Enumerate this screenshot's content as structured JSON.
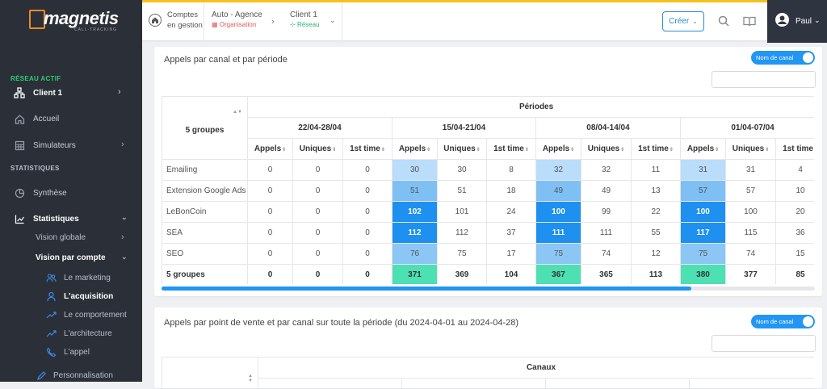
{
  "sidebar": {
    "logo_word": "magnetis",
    "logo_sub": "CALL-TRACKING",
    "section_network": "RÉSEAU ACTIF",
    "client_label": "Client 1",
    "accueil": "Accueil",
    "simulateurs": "Simulateurs",
    "section_stats": "STATISTIQUES",
    "synthese": "Synthèse",
    "statistiques": "Statistiques",
    "vision_globale": "Vision globale",
    "vision_par_compte": "Vision par compte",
    "leaves": [
      "Le marketing",
      "L'acquisition",
      "Le comportement",
      "L'architecture",
      "L'appel"
    ],
    "personnalisation": "Personnalisation",
    "accent": "#2ecc71"
  },
  "topbar": {
    "crumb1_l1": "Comptes",
    "crumb1_l2": "en gestion",
    "crumb2_l1": "Auto - Agence",
    "crumb2_l2": "Organisation",
    "crumb3_l1": "Client 1",
    "crumb3_l2": "Réseau",
    "create_label": "Créer",
    "user_name": "Paul",
    "accent": "#f4c21d"
  },
  "card1": {
    "title": "Appels par canal et par période",
    "toggle_label": "Nom de canal",
    "group_header": "5 groupes",
    "periods_header": "Périodes",
    "periods": [
      "22/04-28/04",
      "15/04-21/04",
      "08/04-14/04",
      "01/04-07/04"
    ],
    "subcols": [
      "Appels",
      "Uniques",
      "1st time"
    ],
    "rows": [
      {
        "label": "Emailing",
        "values": [
          [
            0,
            0,
            0
          ],
          [
            30,
            30,
            8
          ],
          [
            32,
            32,
            11
          ],
          [
            31,
            31,
            4
          ]
        ]
      },
      {
        "label": "Extension Google Ads",
        "values": [
          [
            0,
            0,
            0
          ],
          [
            51,
            51,
            18
          ],
          [
            49,
            49,
            13
          ],
          [
            57,
            57,
            10
          ]
        ]
      },
      {
        "label": "LeBonCoin",
        "values": [
          [
            0,
            0,
            0
          ],
          [
            102,
            101,
            24
          ],
          [
            100,
            99,
            22
          ],
          [
            100,
            100,
            20
          ]
        ]
      },
      {
        "label": "SEA",
        "values": [
          [
            0,
            0,
            0
          ],
          [
            112,
            112,
            37
          ],
          [
            111,
            111,
            55
          ],
          [
            117,
            115,
            36
          ]
        ]
      },
      {
        "label": "SEO",
        "values": [
          [
            0,
            0,
            0
          ],
          [
            76,
            75,
            17
          ],
          [
            75,
            74,
            12
          ],
          [
            75,
            74,
            15
          ]
        ]
      }
    ],
    "total": {
      "label": "5 groupes",
      "values": [
        [
          0,
          0,
          0
        ],
        [
          371,
          369,
          104
        ],
        [
          367,
          365,
          113
        ],
        [
          380,
          377,
          85
        ]
      ]
    }
  },
  "card2": {
    "title": "Appels par point de vente et par canal sur toute la période (du 2024-04-01 au 2024-04-28)",
    "toggle_label": "Nom de canal",
    "channels_header": "Canaux"
  }
}
